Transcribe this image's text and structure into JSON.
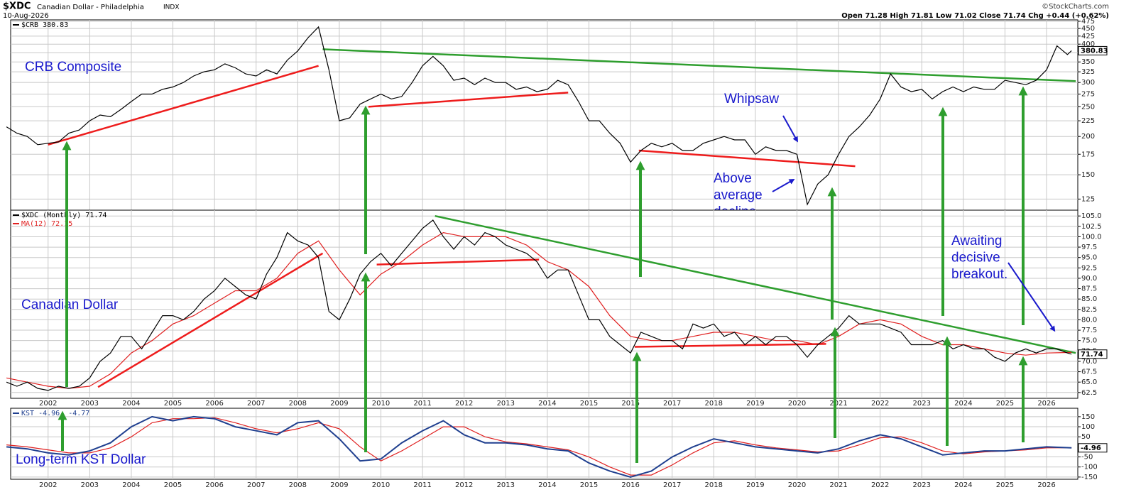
{
  "header": {
    "symbol": "$XDC",
    "name": "Canadian Dollar - Philadelphia",
    "exchange": "INDX",
    "date": "10-Aug-2026",
    "copyright": "©StockCharts.com",
    "quote": "Open 71.28  High 71.81  Low 71.02  Close 71.74  Chg +0.44 (+0.62%)"
  },
  "chart_data": [
    {
      "type": "line",
      "log_scale": true,
      "grid": true,
      "xlim": [
        2001.1,
        2026.75
      ],
      "ylim": [
        115,
        480
      ],
      "yticks": [
        125,
        150,
        175,
        200,
        225,
        250,
        275,
        300,
        325,
        350,
        375,
        400,
        425,
        450,
        475
      ],
      "series": [
        {
          "name": "$CRB 380.83",
          "color": "#000000",
          "x": [
            2001,
            2001.25,
            2001.5,
            2001.75,
            2002,
            2002.25,
            2002.5,
            2002.75,
            2003,
            2003.25,
            2003.5,
            2003.75,
            2004,
            2004.25,
            2004.5,
            2004.75,
            2005,
            2005.25,
            2005.5,
            2005.75,
            2006,
            2006.25,
            2006.5,
            2006.75,
            2007,
            2007.25,
            2007.5,
            2007.75,
            2008,
            2008.25,
            2008.5,
            2008.75,
            2009,
            2009.25,
            2009.5,
            2009.75,
            2010,
            2010.25,
            2010.5,
            2010.75,
            2011,
            2011.25,
            2011.5,
            2011.75,
            2012,
            2012.25,
            2012.5,
            2012.75,
            2013,
            2013.25,
            2013.5,
            2013.75,
            2014,
            2014.25,
            2014.5,
            2014.75,
            2015,
            2015.25,
            2015.5,
            2015.75,
            2016,
            2016.25,
            2016.5,
            2016.75,
            2017,
            2017.25,
            2017.5,
            2017.75,
            2018,
            2018.25,
            2018.5,
            2018.75,
            2019,
            2019.25,
            2019.5,
            2019.75,
            2020,
            2020.25,
            2020.5,
            2020.75,
            2021,
            2021.25,
            2021.5,
            2021.75,
            2022,
            2022.25,
            2022.5,
            2022.75,
            2023,
            2023.25,
            2023.5,
            2023.75,
            2024,
            2024.25,
            2024.5,
            2024.75,
            2025,
            2025.25,
            2025.5,
            2025.75,
            2026,
            2026.25,
            2026.5,
            2026.6
          ],
          "values": [
            215,
            205,
            200,
            188,
            190,
            192,
            205,
            210,
            225,
            235,
            232,
            245,
            260,
            275,
            275,
            285,
            290,
            300,
            315,
            325,
            330,
            345,
            335,
            320,
            315,
            330,
            320,
            355,
            380,
            420,
            455,
            330,
            225,
            230,
            255,
            265,
            275,
            265,
            270,
            300,
            340,
            365,
            340,
            305,
            310,
            295,
            310,
            300,
            300,
            285,
            290,
            280,
            285,
            305,
            295,
            260,
            225,
            225,
            205,
            190,
            165,
            180,
            190,
            185,
            190,
            180,
            180,
            190,
            195,
            200,
            195,
            195,
            175,
            185,
            180,
            180,
            175,
            120,
            140,
            150,
            175,
            200,
            215,
            235,
            265,
            320,
            290,
            280,
            285,
            265,
            280,
            290,
            280,
            290,
            285,
            285,
            305,
            300,
            295,
            305,
            330,
            395,
            370,
            380.83
          ]
        }
      ],
      "trendlines": [
        {
          "color": "#ee1c1c",
          "x": [
            2002.0,
            2008.5
          ],
          "y": [
            188,
            340
          ]
        },
        {
          "color": "#ee1c1c",
          "x": [
            2009.7,
            2014.5
          ],
          "y": [
            250,
            278
          ]
        },
        {
          "color": "#ee1c1c",
          "x": [
            2016.2,
            2021.4
          ],
          "y": [
            180,
            160
          ]
        },
        {
          "color": "#2e9e2e",
          "x": [
            2008.6,
            2026.7
          ],
          "y": [
            385,
            303
          ]
        }
      ],
      "annotations": [
        [
          "CRB Composite"
        ],
        [
          "Whipsaw"
        ],
        [
          "Above",
          "average",
          "decline"
        ]
      ]
    },
    {
      "type": "line",
      "grid": true,
      "xlim": [
        2001.1,
        2026.75
      ],
      "ylim": [
        61.1,
        106.4
      ],
      "xticks": [
        2002,
        2003,
        2004,
        2005,
        2006,
        2007,
        2008,
        2009,
        2010,
        2011,
        2012,
        2013,
        2014,
        2015,
        2016,
        2017,
        2018,
        2019,
        2020,
        2021,
        2022,
        2023,
        2024,
        2025,
        2026
      ],
      "yticks": [
        62.5,
        {
          "value": 65,
          "label": "65.0"
        },
        67.5,
        {
          "value": 70,
          "label": "70.0"
        },
        72.5,
        {
          "value": 75,
          "label": "75.0"
        },
        77.5,
        {
          "value": 80,
          "label": "80.0"
        },
        82.5,
        {
          "value": 85,
          "label": "85.0"
        },
        87.5,
        {
          "value": 90,
          "label": "90.0"
        },
        92.5,
        {
          "value": 95,
          "label": "95.0"
        },
        97.5,
        {
          "value": 100,
          "label": "100.0"
        },
        102.5,
        {
          "value": 105,
          "label": "105.0"
        }
      ],
      "series": [
        {
          "name": "$XDC (Monthly) 71.74",
          "color": "#000000",
          "x": [
            2001,
            2001.25,
            2001.5,
            2001.75,
            2002,
            2002.25,
            2002.5,
            2002.75,
            2003,
            2003.25,
            2003.5,
            2003.75,
            2004,
            2004.25,
            2004.5,
            2004.75,
            2005,
            2005.25,
            2005.5,
            2005.75,
            2006,
            2006.25,
            2006.5,
            2006.75,
            2007,
            2007.25,
            2007.5,
            2007.75,
            2008,
            2008.25,
            2008.5,
            2008.75,
            2009,
            2009.25,
            2009.5,
            2009.75,
            2010,
            2010.25,
            2010.5,
            2010.75,
            2011,
            2011.25,
            2011.5,
            2011.75,
            2012,
            2012.25,
            2012.5,
            2012.75,
            2013,
            2013.25,
            2013.5,
            2013.75,
            2014,
            2014.25,
            2014.5,
            2014.75,
            2015,
            2015.25,
            2015.5,
            2015.75,
            2016,
            2016.25,
            2016.5,
            2016.75,
            2017,
            2017.25,
            2017.5,
            2017.75,
            2018,
            2018.25,
            2018.5,
            2018.75,
            2019,
            2019.25,
            2019.5,
            2019.75,
            2020,
            2020.25,
            2020.5,
            2020.75,
            2021,
            2021.25,
            2021.5,
            2021.75,
            2022,
            2022.25,
            2022.5,
            2022.75,
            2023,
            2023.25,
            2023.5,
            2023.75,
            2024,
            2024.25,
            2024.5,
            2024.75,
            2025,
            2025.25,
            2025.5,
            2025.75,
            2026,
            2026.25,
            2026.5,
            2026.6
          ],
          "values": [
            65,
            64,
            65,
            63.5,
            63,
            64,
            63.5,
            64,
            66,
            70,
            72,
            76,
            76,
            73,
            77,
            81,
            81,
            80,
            82,
            85,
            87,
            90,
            88,
            86,
            85,
            91,
            95,
            101,
            99,
            98,
            95,
            82,
            80,
            85,
            91,
            94,
            96,
            93,
            96,
            99,
            102,
            104,
            100,
            97,
            100,
            98,
            101,
            100,
            98,
            97,
            96,
            94,
            90,
            92,
            92,
            86,
            80,
            80,
            76,
            74,
            72,
            77,
            76,
            75,
            75,
            73,
            79,
            78,
            79,
            76,
            77,
            74,
            76,
            74,
            76,
            76,
            74,
            71,
            74,
            76,
            78,
            81,
            79,
            79,
            79,
            78,
            77,
            74,
            74,
            74,
            75,
            73,
            74,
            73,
            73,
            71,
            70,
            72,
            73,
            72,
            73,
            73,
            72,
            71.74
          ]
        },
        {
          "name": "MA(12) 72.15",
          "color": "#e02020",
          "x": [
            2001,
            2001.5,
            2002,
            2002.5,
            2003,
            2003.5,
            2004,
            2004.5,
            2005,
            2005.5,
            2006,
            2006.5,
            2007,
            2007.5,
            2008,
            2008.5,
            2009,
            2009.5,
            2010,
            2010.5,
            2011,
            2011.5,
            2012,
            2012.5,
            2013,
            2013.5,
            2014,
            2014.5,
            2015,
            2015.5,
            2016,
            2016.5,
            2017,
            2017.5,
            2018,
            2018.5,
            2019,
            2019.5,
            2020,
            2020.5,
            2021,
            2021.5,
            2022,
            2022.5,
            2023,
            2023.5,
            2024,
            2024.5,
            2025,
            2025.5,
            2026,
            2026.6
          ],
          "values": [
            66,
            65,
            64,
            63.5,
            64,
            67,
            72,
            75,
            79,
            81,
            84,
            87,
            87,
            90,
            96,
            99,
            92,
            86,
            91,
            94,
            98,
            101,
            100,
            100,
            100,
            98,
            94,
            92,
            88,
            81,
            76,
            75,
            75,
            76,
            77,
            77,
            76,
            75,
            75,
            74,
            76,
            79,
            80,
            79,
            76,
            74,
            74,
            73,
            72,
            71.5,
            72,
            72.15
          ]
        }
      ],
      "trendlines": [
        {
          "color": "#ee1c1c",
          "x": [
            2003.2,
            2008.6
          ],
          "y": [
            63.8,
            96
          ]
        },
        {
          "color": "#ee1c1c",
          "x": [
            2009.9,
            2013.8
          ],
          "y": [
            93.3,
            94.5
          ]
        },
        {
          "color": "#ee1c1c",
          "x": [
            2016.1,
            2020.7
          ],
          "y": [
            73.5,
            74.2
          ]
        },
        {
          "color": "#2e9e2e",
          "x": [
            2011.3,
            2026.7
          ],
          "y": [
            105,
            72
          ]
        }
      ],
      "annotations": [
        [
          "Canadian Dollar"
        ],
        [
          "Awaiting",
          "decisive",
          "breakout."
        ]
      ]
    },
    {
      "type": "line",
      "grid": true,
      "xlim": [
        2001.1,
        2026.75
      ],
      "ylim": [
        -161,
        192
      ],
      "xticks": [
        2002,
        2003,
        2004,
        2005,
        2006,
        2007,
        2008,
        2009,
        2010,
        2011,
        2012,
        2013,
        2014,
        2015,
        2016,
        2017,
        2018,
        2019,
        2020,
        2021,
        2022,
        2023,
        2024,
        2025,
        2026
      ],
      "yticks": [
        -150,
        -100,
        -50,
        50,
        100,
        150
      ],
      "series": [
        {
          "name": "KST -4.96, -4.77",
          "color": "#1f3f8f",
          "x": [
            2001,
            2001.5,
            2002,
            2002.5,
            2003,
            2003.5,
            2004,
            2004.5,
            2005,
            2005.5,
            2006,
            2006.5,
            2007,
            2007.5,
            2008,
            2008.5,
            2009,
            2009.5,
            2010,
            2010.5,
            2011,
            2011.5,
            2012,
            2012.5,
            2013,
            2013.5,
            2014,
            2014.5,
            2015,
            2015.5,
            2016,
            2016.5,
            2017,
            2017.5,
            2018,
            2018.5,
            2019,
            2019.5,
            2020,
            2020.5,
            2021,
            2021.5,
            2022,
            2022.5,
            2023,
            2023.5,
            2024,
            2024.5,
            2025,
            2025.5,
            2026,
            2026.6
          ],
          "values": [
            0,
            -10,
            -30,
            -40,
            -20,
            20,
            100,
            150,
            130,
            150,
            140,
            100,
            80,
            60,
            120,
            130,
            40,
            -70,
            -60,
            20,
            80,
            130,
            60,
            20,
            20,
            10,
            -10,
            -20,
            -80,
            -120,
            -150,
            -120,
            -50,
            0,
            40,
            20,
            0,
            -10,
            -20,
            -30,
            -10,
            30,
            60,
            40,
            0,
            -40,
            -30,
            -20,
            -20,
            -10,
            0,
            -4.96
          ]
        },
        {
          "color": "#e02020",
          "x": [
            2001,
            2001.5,
            2002,
            2002.5,
            2003,
            2003.5,
            2004,
            2004.5,
            2005,
            2005.5,
            2006,
            2006.5,
            2007,
            2007.5,
            2008,
            2008.5,
            2009,
            2009.5,
            2010,
            2010.5,
            2011,
            2011.5,
            2012,
            2012.5,
            2013,
            2013.5,
            2014,
            2014.5,
            2015,
            2015.5,
            2016,
            2016.5,
            2017,
            2017.5,
            2018,
            2018.5,
            2019,
            2019.5,
            2020,
            2020.5,
            2021,
            2021.5,
            2022,
            2022.5,
            2023,
            2023.5,
            2024,
            2024.5,
            2025,
            2025.5,
            2026,
            2026.6
          ],
          "values": [
            10,
            0,
            -15,
            -30,
            -30,
            -5,
            50,
            120,
            140,
            140,
            145,
            120,
            90,
            70,
            90,
            120,
            90,
            0,
            -70,
            -20,
            40,
            100,
            100,
            50,
            25,
            15,
            0,
            -15,
            -50,
            -100,
            -140,
            -140,
            -90,
            -30,
            20,
            30,
            10,
            -5,
            -15,
            -25,
            -20,
            10,
            45,
            50,
            20,
            -20,
            -35,
            -25,
            -20,
            -15,
            -5,
            -4.77
          ]
        }
      ],
      "annotations": [
        [
          "Long-term KST Dollar"
        ]
      ]
    }
  ]
}
